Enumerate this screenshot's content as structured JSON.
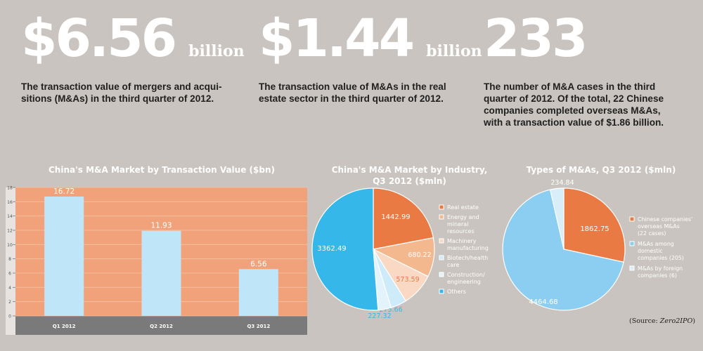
{
  "stats": [
    {
      "value": "$6.56",
      "unit": "billion",
      "description": [
        "The transaction value of mergers and acqui-",
        "sitions (M&As) in the third quarter of 2012."
      ]
    },
    {
      "value": "$1.44",
      "unit": "billion",
      "description": [
        "The transaction value of M&As in the real",
        "estate sector in the third quarter of 2012."
      ]
    },
    {
      "value": "233",
      "unit": "",
      "description": [
        "The number of M&A cases in the third",
        "quarter of 2012. Of the total, 22 Chinese",
        "companies completed overseas M&As,",
        "with a transaction value of $1.86 billion."
      ]
    }
  ],
  "colors": {
    "bar_panel": "#f1a27a",
    "bar_fill": "#bfe6f8",
    "axis_band": "#7a7a7a",
    "orange": "#ea7a44",
    "light_orange": "#f4b88f",
    "peach": "#f9d9c4",
    "light_blue": "#cdebf9",
    "pale_blue": "#e3f3fb",
    "bright_blue": "#35b7ea",
    "sky_blue": "#8ccef2",
    "very_pale_blue": "#d8eef9"
  },
  "chart_data": [
    {
      "type": "bar",
      "title": "China's M&A Market by Transaction Value ($bn)",
      "categories": [
        "Q1 2012",
        "Q2 2012",
        "Q3 2012"
      ],
      "values": [
        16.72,
        11.93,
        6.56
      ],
      "data_labels": [
        "16.72",
        "11.93",
        "6.56"
      ],
      "yticks": [
        "0",
        "2",
        "4",
        "6",
        "8",
        "10",
        "12",
        "14",
        "16",
        "18"
      ],
      "ylim": [
        0,
        18
      ],
      "grid": true
    },
    {
      "type": "pie",
      "title": [
        "China's M&A Market by Industry,",
        "Q3 2012 ($mln)"
      ],
      "slices": [
        {
          "label": [
            "Real estate"
          ],
          "value": 1442.99,
          "data_label": "1442.99",
          "color_key": "orange"
        },
        {
          "label": [
            "Energy and",
            "mineral",
            "resources"
          ],
          "value": 680.22,
          "data_label": "680.22",
          "color_key": "light_orange"
        },
        {
          "label": [
            "Machinery",
            "manufacturing"
          ],
          "value": 573.59,
          "data_label": "573.59",
          "color_key": "peach"
        },
        {
          "label": [
            "Biotech/health",
            "care"
          ],
          "value": 275.66,
          "data_label": "275.66",
          "color_key": "light_blue"
        },
        {
          "label": [
            "Construction/",
            "engineering"
          ],
          "value": 227.32,
          "data_label": "227.32",
          "color_key": "pale_blue"
        },
        {
          "label": [
            "Others"
          ],
          "value": 3362.49,
          "data_label": "3362.49",
          "color_key": "bright_blue"
        }
      ]
    },
    {
      "type": "pie",
      "title": [
        "Types of M&As, Q3 2012 ($mln)"
      ],
      "slices": [
        {
          "label": [
            "Chinese companies'",
            "overseas M&As",
            "(22 cases)"
          ],
          "value": 1862.75,
          "data_label": "1862.75",
          "color_key": "orange"
        },
        {
          "label": [
            "M&As among",
            "domestic",
            "companies (205)"
          ],
          "value": 4464.68,
          "data_label": "4464.68",
          "color_key": "sky_blue"
        },
        {
          "label": [
            "M&As by foreign",
            "companies (6)"
          ],
          "value": 234.84,
          "data_label": "234.84",
          "color_key": "very_pale_blue"
        }
      ]
    }
  ],
  "source_prefix": "(Source: ",
  "source_name": "Zero2IPO",
  "source_suffix": ")"
}
